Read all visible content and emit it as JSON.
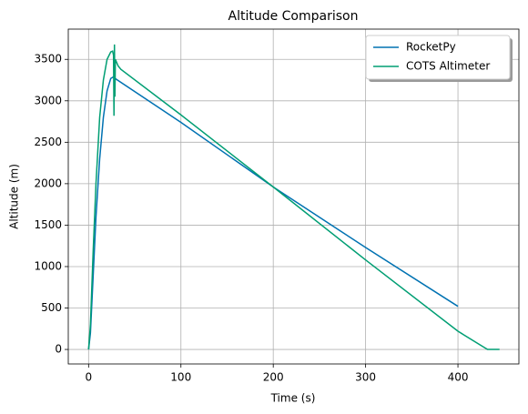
{
  "chart_data": {
    "type": "line",
    "title": "Altitude Comparison",
    "x_label": "Time (s)",
    "y_label": "Altitude (m)",
    "xlim": [
      -22,
      466
    ],
    "ylim": [
      -175,
      3865
    ],
    "xticks": [
      0,
      100,
      200,
      300,
      400
    ],
    "yticks": [
      0,
      500,
      1000,
      1500,
      2000,
      2500,
      3000,
      3500
    ],
    "grid": true,
    "legend": "upper right",
    "series": [
      {
        "name": "RocketPy",
        "color": "#0072b2",
        "x": [
          0,
          2,
          5,
          8,
          12,
          16,
          20,
          24,
          27,
          30,
          100,
          200,
          300,
          400
        ],
        "values": [
          0,
          200,
          900,
          1600,
          2300,
          2800,
          3120,
          3270,
          3290,
          3260,
          2740,
          1960,
          1230,
          520
        ]
      },
      {
        "name": "COTS Altimeter",
        "color": "#009e73",
        "x": [
          0,
          2,
          5,
          8,
          12,
          16,
          20,
          24,
          26,
          27,
          27.5,
          28,
          28.5,
          29,
          32,
          35,
          100,
          200,
          300,
          400,
          432,
          445
        ],
        "values": [
          0,
          300,
          1200,
          2000,
          2800,
          3250,
          3500,
          3590,
          3600,
          3550,
          2820,
          3680,
          3050,
          3500,
          3420,
          3380,
          2830,
          1960,
          1080,
          220,
          0,
          0
        ]
      }
    ]
  }
}
